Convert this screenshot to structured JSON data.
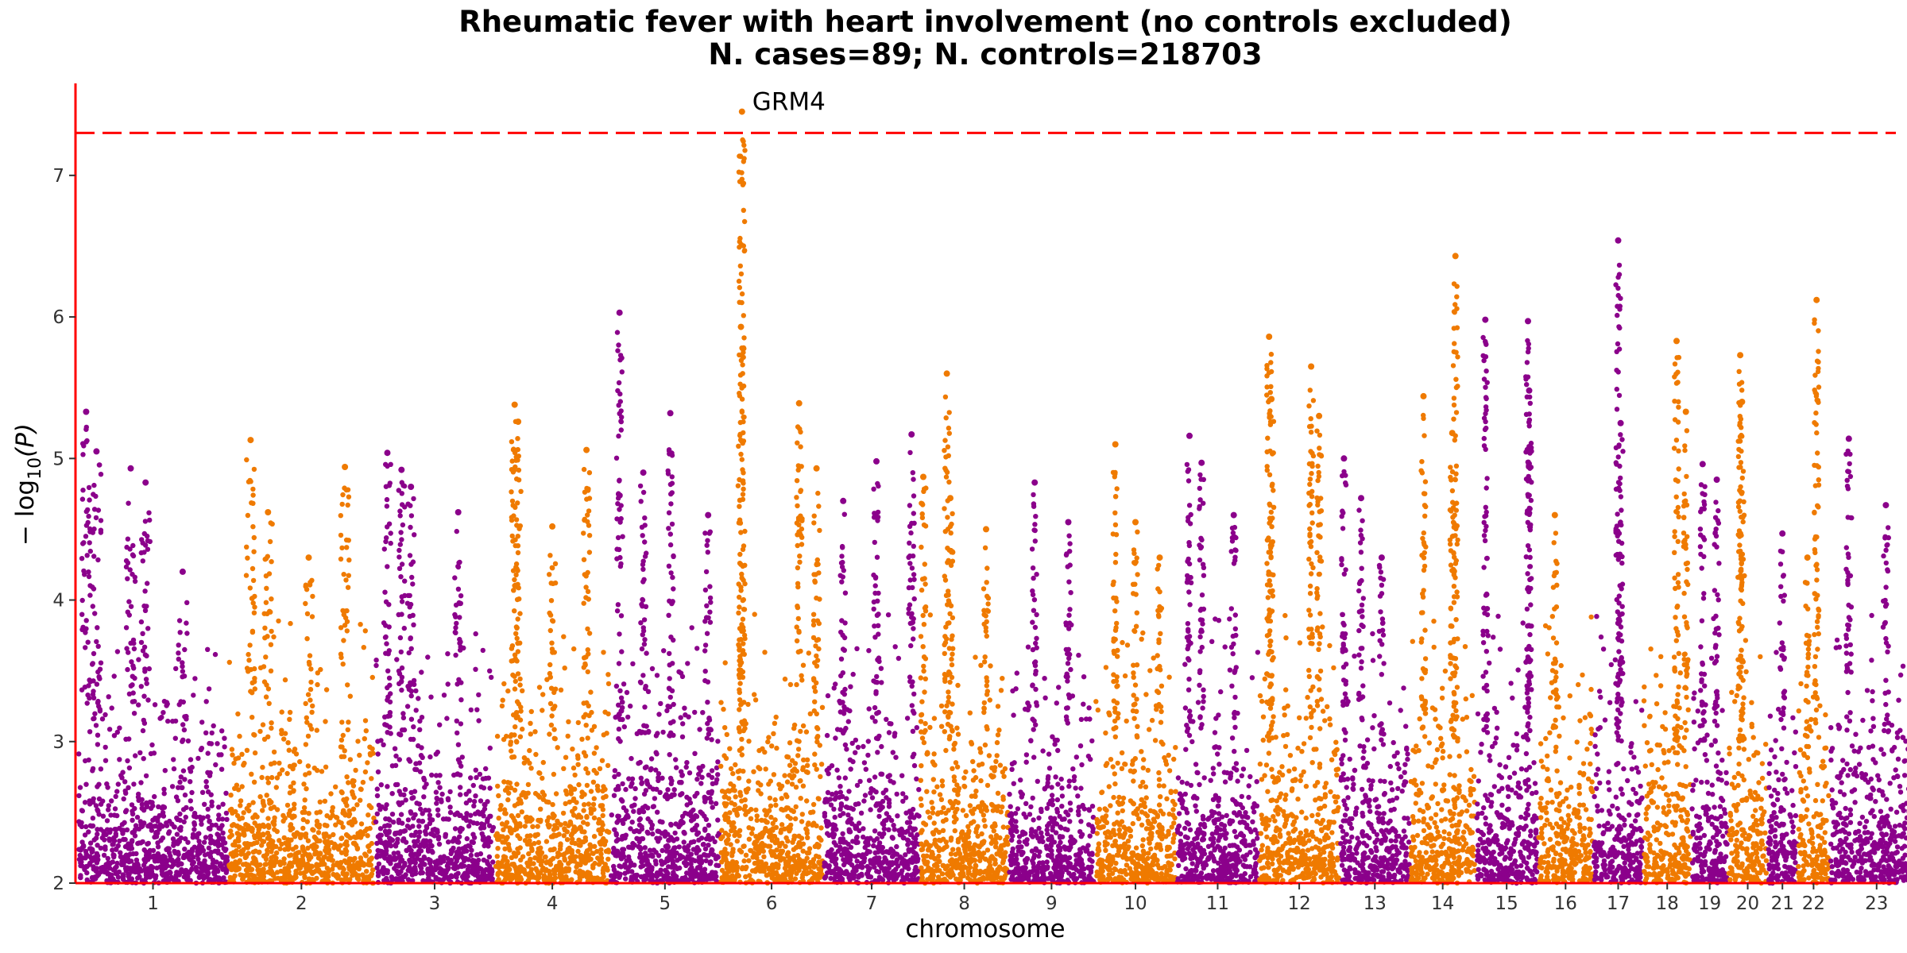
{
  "chart_data": {
    "type": "scatter",
    "subtype": "manhattan",
    "title": "Rheumatic fever with heart involvement (no controls excluded)",
    "subtitle": "N. cases=89; N. controls=218703",
    "xlabel": "chromosome",
    "ylabel_prefix": "− log",
    "ylabel_sub": "10",
    "ylabel_suffix": "(P)",
    "ylim": [
      2,
      7.65
    ],
    "yticks": [
      "2",
      "3",
      "4",
      "5",
      "6",
      "7"
    ],
    "threshold": 7.3,
    "colors": {
      "odd": "#8b008b",
      "even": "#ef7a00",
      "threshold": "#ff0000",
      "axis": "#ff0000"
    },
    "chromosomes": [
      {
        "label": "1",
        "len": 249,
        "tops": [
          [
            0.05,
            5.33
          ],
          [
            0.12,
            5.05
          ],
          [
            0.35,
            4.93
          ],
          [
            0.45,
            4.83
          ],
          [
            0.7,
            4.2
          ]
        ]
      },
      {
        "label": "2",
        "len": 243,
        "tops": [
          [
            0.15,
            5.13
          ],
          [
            0.27,
            4.62
          ],
          [
            0.8,
            4.94
          ],
          [
            0.55,
            4.3
          ]
        ]
      },
      {
        "label": "3",
        "len": 198,
        "tops": [
          [
            0.1,
            5.04
          ],
          [
            0.22,
            4.92
          ],
          [
            0.7,
            4.62
          ],
          [
            0.3,
            4.8
          ]
        ]
      },
      {
        "label": "4",
        "len": 191,
        "tops": [
          [
            0.17,
            5.38
          ],
          [
            0.2,
            5.26
          ],
          [
            0.8,
            5.06
          ],
          [
            0.5,
            4.52
          ]
        ]
      },
      {
        "label": "5",
        "len": 181,
        "tops": [
          [
            0.08,
            6.03
          ],
          [
            0.55,
            5.32
          ],
          [
            0.3,
            4.9
          ],
          [
            0.9,
            4.6
          ]
        ]
      },
      {
        "label": "6",
        "len": 171,
        "tops": [
          [
            0.21,
            7.45
          ],
          [
            0.2,
            5.93
          ],
          [
            0.77,
            5.39
          ],
          [
            0.94,
            4.93
          ]
        ]
      },
      {
        "label": "7",
        "len": 159,
        "tops": [
          [
            0.55,
            4.98
          ],
          [
            0.92,
            5.17
          ],
          [
            0.2,
            4.7
          ]
        ]
      },
      {
        "label": "8",
        "len": 146,
        "tops": [
          [
            0.03,
            4.87
          ],
          [
            0.3,
            5.6
          ],
          [
            0.34,
            4.72
          ],
          [
            0.75,
            4.5
          ]
        ]
      },
      {
        "label": "9",
        "len": 141,
        "tops": [
          [
            0.3,
            4.83
          ],
          [
            0.7,
            4.55
          ]
        ]
      },
      {
        "label": "10",
        "len": 135,
        "tops": [
          [
            0.25,
            5.1
          ],
          [
            0.5,
            4.55
          ],
          [
            0.8,
            4.3
          ]
        ]
      },
      {
        "label": "11",
        "len": 135,
        "tops": [
          [
            0.15,
            5.16
          ],
          [
            0.3,
            4.97
          ],
          [
            0.7,
            4.6
          ]
        ]
      },
      {
        "label": "12",
        "len": 133,
        "tops": [
          [
            0.12,
            5.86
          ],
          [
            0.15,
            5.42
          ],
          [
            0.65,
            5.65
          ],
          [
            0.75,
            5.3
          ]
        ]
      },
      {
        "label": "13",
        "len": 115,
        "tops": [
          [
            0.05,
            5.0
          ],
          [
            0.3,
            4.72
          ],
          [
            0.6,
            4.3
          ]
        ]
      },
      {
        "label": "14",
        "len": 107,
        "tops": [
          [
            0.2,
            5.44
          ],
          [
            0.7,
            6.43
          ],
          [
            0.65,
            5.18
          ]
        ]
      },
      {
        "label": "15",
        "len": 102,
        "tops": [
          [
            0.15,
            5.98
          ],
          [
            0.85,
            5.97
          ],
          [
            0.87,
            5.48
          ]
        ]
      },
      {
        "label": "16",
        "len": 90,
        "tops": [
          [
            0.3,
            4.6
          ]
        ]
      },
      {
        "label": "17",
        "len": 81,
        "tops": [
          [
            0.5,
            6.54
          ],
          [
            0.55,
            5.25
          ]
        ]
      },
      {
        "label": "18",
        "len": 78,
        "tops": [
          [
            0.7,
            5.83
          ],
          [
            0.9,
            5.33
          ]
        ]
      },
      {
        "label": "19",
        "len": 59,
        "tops": [
          [
            0.3,
            4.96
          ],
          [
            0.7,
            4.85
          ]
        ]
      },
      {
        "label": "20",
        "len": 63,
        "tops": [
          [
            0.3,
            5.73
          ],
          [
            0.35,
            5.4
          ]
        ]
      },
      {
        "label": "21",
        "len": 48,
        "tops": [
          [
            0.5,
            4.47
          ]
        ]
      },
      {
        "label": "22",
        "len": 51,
        "tops": [
          [
            0.6,
            6.12
          ],
          [
            0.3,
            4.3
          ]
        ]
      },
      {
        "label": "23",
        "len": 155,
        "tops": [
          [
            0.2,
            5.14
          ],
          [
            0.6,
            4.67
          ],
          [
            0.9,
            4.45
          ]
        ]
      }
    ],
    "annotations": [
      {
        "label": "GRM4",
        "chromosome": "6",
        "y": 7.45
      }
    ]
  }
}
